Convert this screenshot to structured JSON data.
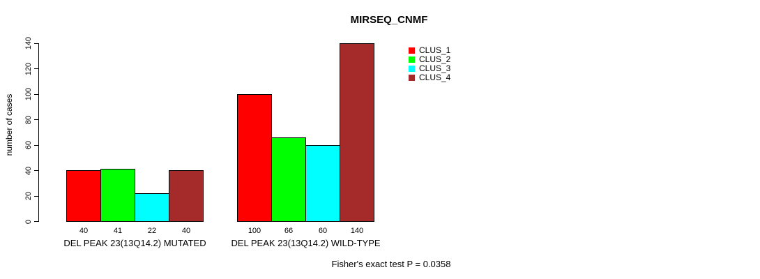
{
  "chart_data": {
    "type": "bar",
    "title": "MIRSEQ_CNMF",
    "ylabel": "number of cases",
    "xlabel": "",
    "ylim": [
      0,
      140
    ],
    "yticks": [
      0,
      20,
      40,
      60,
      80,
      100,
      120,
      140
    ],
    "categories": [
      "DEL PEAK 23(13Q14.2) MUTATED",
      "DEL PEAK 23(13Q14.2) WILD-TYPE"
    ],
    "series": [
      {
        "name": "CLUS_1",
        "color": "#ff0000",
        "values": [
          40,
          100
        ]
      },
      {
        "name": "CLUS_2",
        "color": "#00ff00",
        "values": [
          41,
          66
        ]
      },
      {
        "name": "CLUS_3",
        "color": "#00ffff",
        "values": [
          22,
          60
        ]
      },
      {
        "name": "CLUS_4",
        "color": "#a52a2a",
        "values": [
          40,
          140
        ]
      }
    ],
    "bar_value_labels": [
      [
        40,
        41,
        22,
        40
      ],
      [
        100,
        66,
        60,
        140
      ]
    ],
    "legend_position": "top-right",
    "grid": false,
    "annotation": "Fisher's exact test P = 0.0358",
    "axis_color": "#000000",
    "background_color": "#ffffff"
  }
}
